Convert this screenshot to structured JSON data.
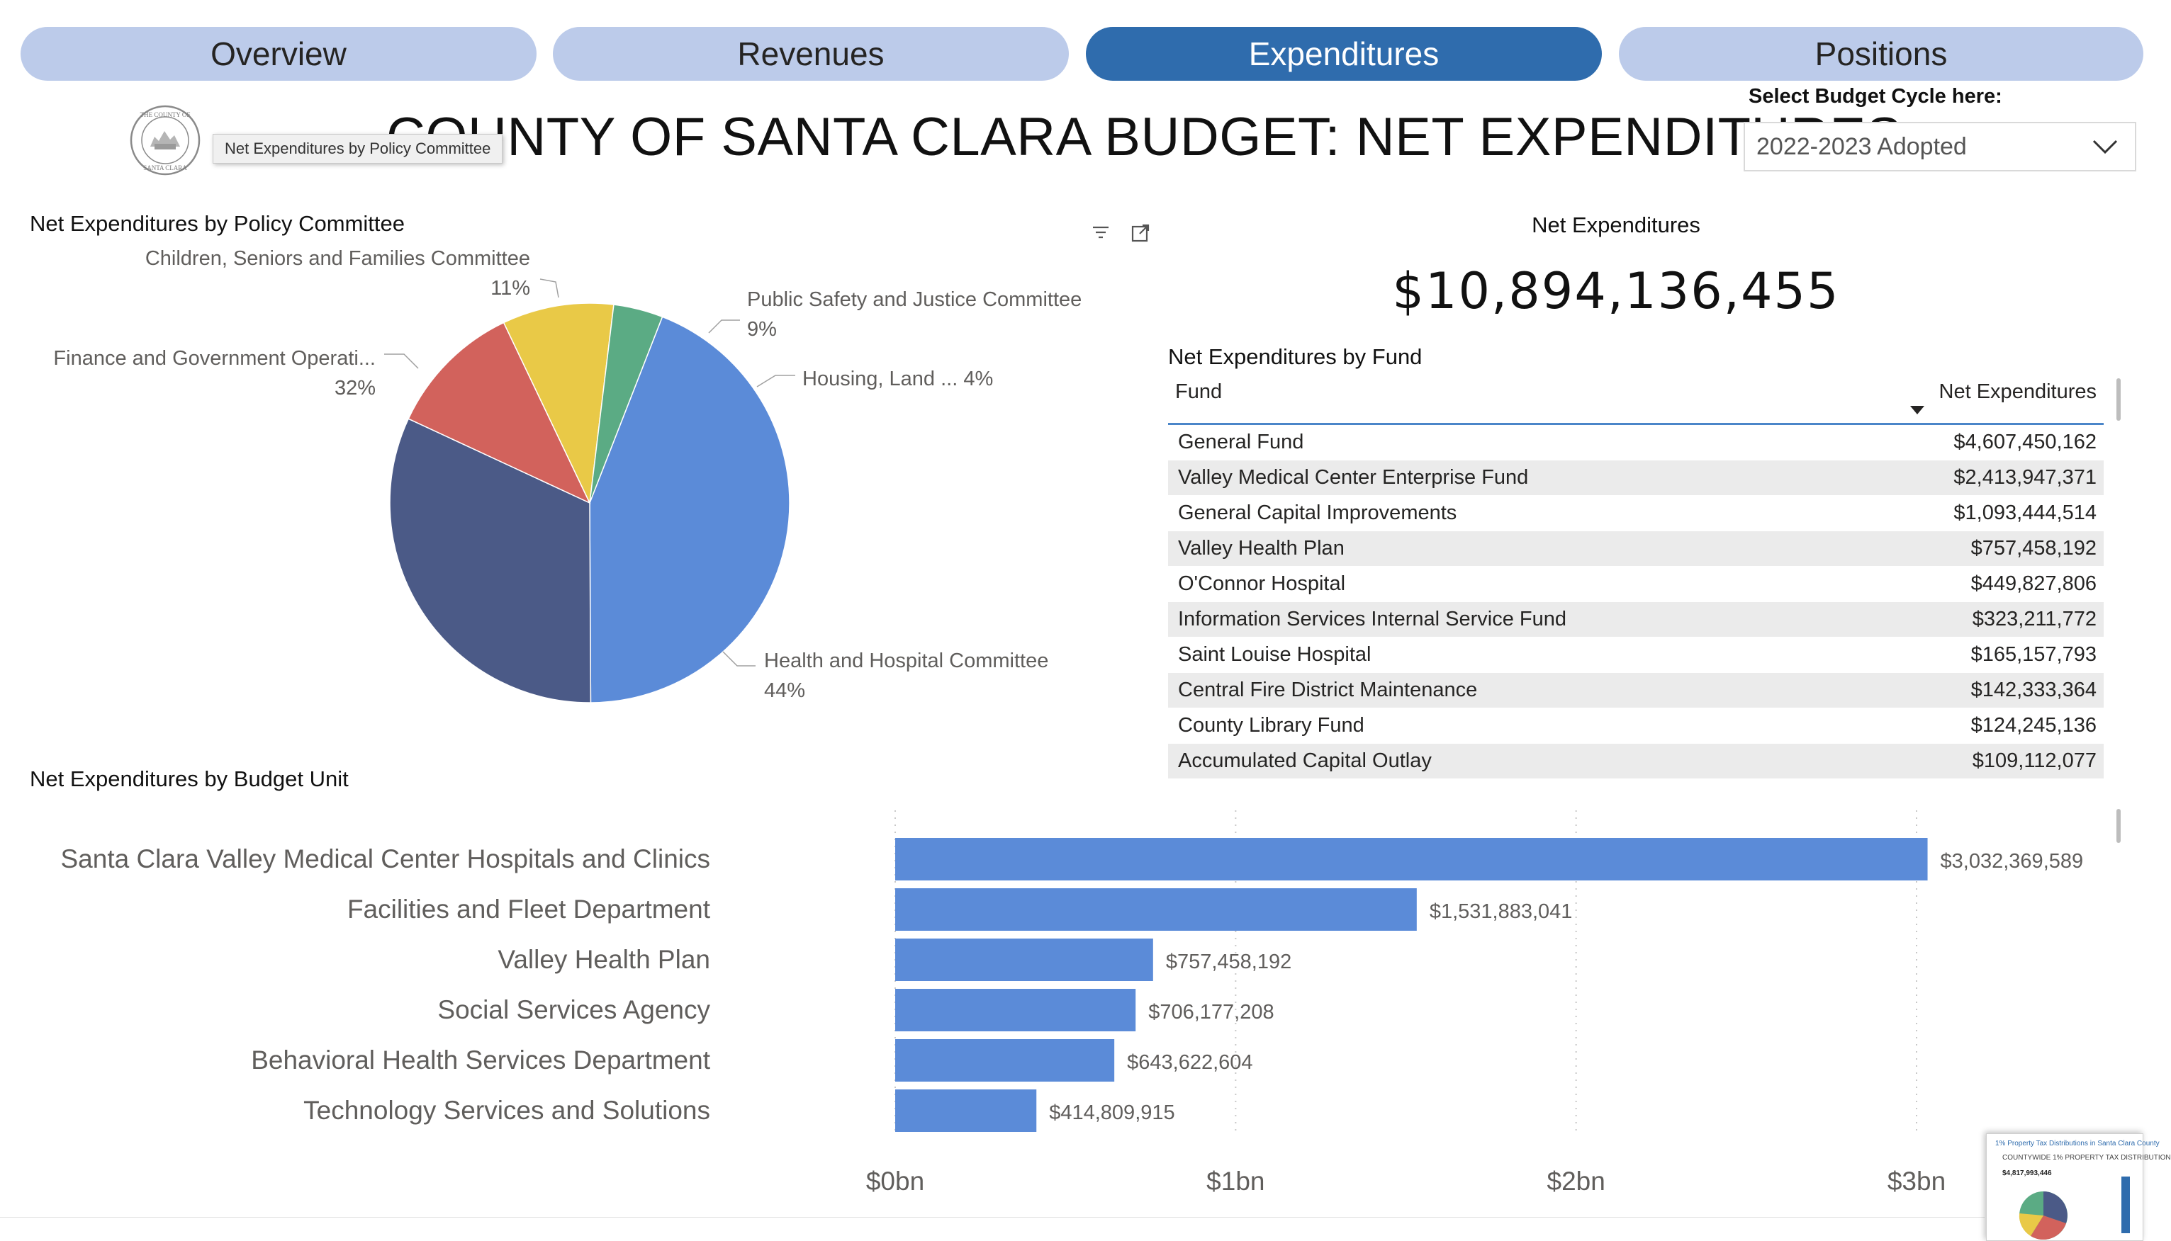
{
  "tabs": [
    {
      "label": "Overview",
      "active": false
    },
    {
      "label": "Revenues",
      "active": false
    },
    {
      "label": "Expenditures",
      "active": true
    },
    {
      "label": "Positions",
      "active": false
    }
  ],
  "header": {
    "title": "COUNTY OF SANTA CLARA BUDGET: NET EXPENDITURES",
    "seal_text": "THE COUNTY OF SANTA CLARA",
    "tooltip": "Net Expenditures by Policy Committee",
    "cycle_label": "Select Budget Cycle here:",
    "cycle_value": "2022-2023 Adopted"
  },
  "colors": {
    "tab_inactive": "#bccbea",
    "tab_active": "#2f6cad",
    "bar": "#5b8bd8",
    "table_header_rule": "#4b86c9"
  },
  "policy_chart": {
    "title": "Net Expenditures by Policy Committee"
  },
  "card": {
    "title": "Net Expenditures",
    "value": "$10,894,136,455"
  },
  "fund_table": {
    "title": "Net Expenditures by Fund",
    "columns": [
      "Fund",
      "Net Expenditures"
    ],
    "rows": [
      {
        "fund": "General Fund",
        "value": "$4,607,450,162"
      },
      {
        "fund": "Valley Medical Center Enterprise Fund",
        "value": "$2,413,947,371"
      },
      {
        "fund": "General Capital Improvements",
        "value": "$1,093,444,514"
      },
      {
        "fund": "Valley Health Plan",
        "value": "$757,458,192"
      },
      {
        "fund": "O'Connor Hospital",
        "value": "$449,827,806"
      },
      {
        "fund": "Information Services Internal Service Fund",
        "value": "$323,211,772"
      },
      {
        "fund": "Saint Louise Hospital",
        "value": "$165,157,793"
      },
      {
        "fund": "Central Fire District Maintenance",
        "value": "$142,333,364"
      },
      {
        "fund": "County Library Fund",
        "value": "$124,245,136"
      },
      {
        "fund": "Accumulated Capital Outlay",
        "value": "$109,112,077"
      }
    ]
  },
  "budget_unit_chart": {
    "title": "Net Expenditures by Budget Unit"
  },
  "thumbnail": {
    "title": "1% Property Tax Distributions in Santa Clara County",
    "subtitle": "COUNTYWIDE 1% PROPERTY TAX DISTRIBUTION",
    "value": "$4,817,993,446"
  },
  "chart_data": [
    {
      "type": "pie",
      "title": "Net Expenditures by Policy Committee",
      "slices": [
        {
          "label": "Health and Hospital Committee",
          "percent": 44,
          "percent_label": "44%",
          "color": "#5b8bd8"
        },
        {
          "label": "Finance and Government Operati...",
          "percent": 32,
          "percent_label": "32%",
          "color": "#4b5a87"
        },
        {
          "label": "Children, Seniors and Families Committee",
          "percent": 11,
          "percent_label": "11%",
          "color": "#d2625c"
        },
        {
          "label": "Public Safety and Justice Committee",
          "percent": 9,
          "percent_label": "9%",
          "color": "#e9c947"
        },
        {
          "label": "Housing, Land ...",
          "percent": 4,
          "percent_label": "4%",
          "color": "#5bab84"
        }
      ]
    },
    {
      "type": "bar",
      "orientation": "horizontal",
      "title": "Net Expenditures by Budget Unit",
      "categories": [
        "Santa Clara Valley Medical Center Hospitals and Clinics",
        "Facilities and Fleet Department",
        "Valley Health Plan",
        "Social Services Agency",
        "Behavioral Health Services Department",
        "Technology Services and Solutions"
      ],
      "values": [
        3032369589,
        1531883041,
        757458192,
        706177208,
        643622604,
        414809915
      ],
      "value_labels": [
        "$3,032,369,589",
        "$1,531,883,041",
        "$757,458,192",
        "$706,177,208",
        "$643,622,604",
        "$414,809,915"
      ],
      "xlim": [
        0,
        3000000000
      ],
      "ticks": [
        0,
        1000000000,
        2000000000,
        3000000000
      ],
      "tick_labels": [
        "$0bn",
        "$1bn",
        "$2bn",
        "$3bn"
      ],
      "grid": true
    }
  ]
}
